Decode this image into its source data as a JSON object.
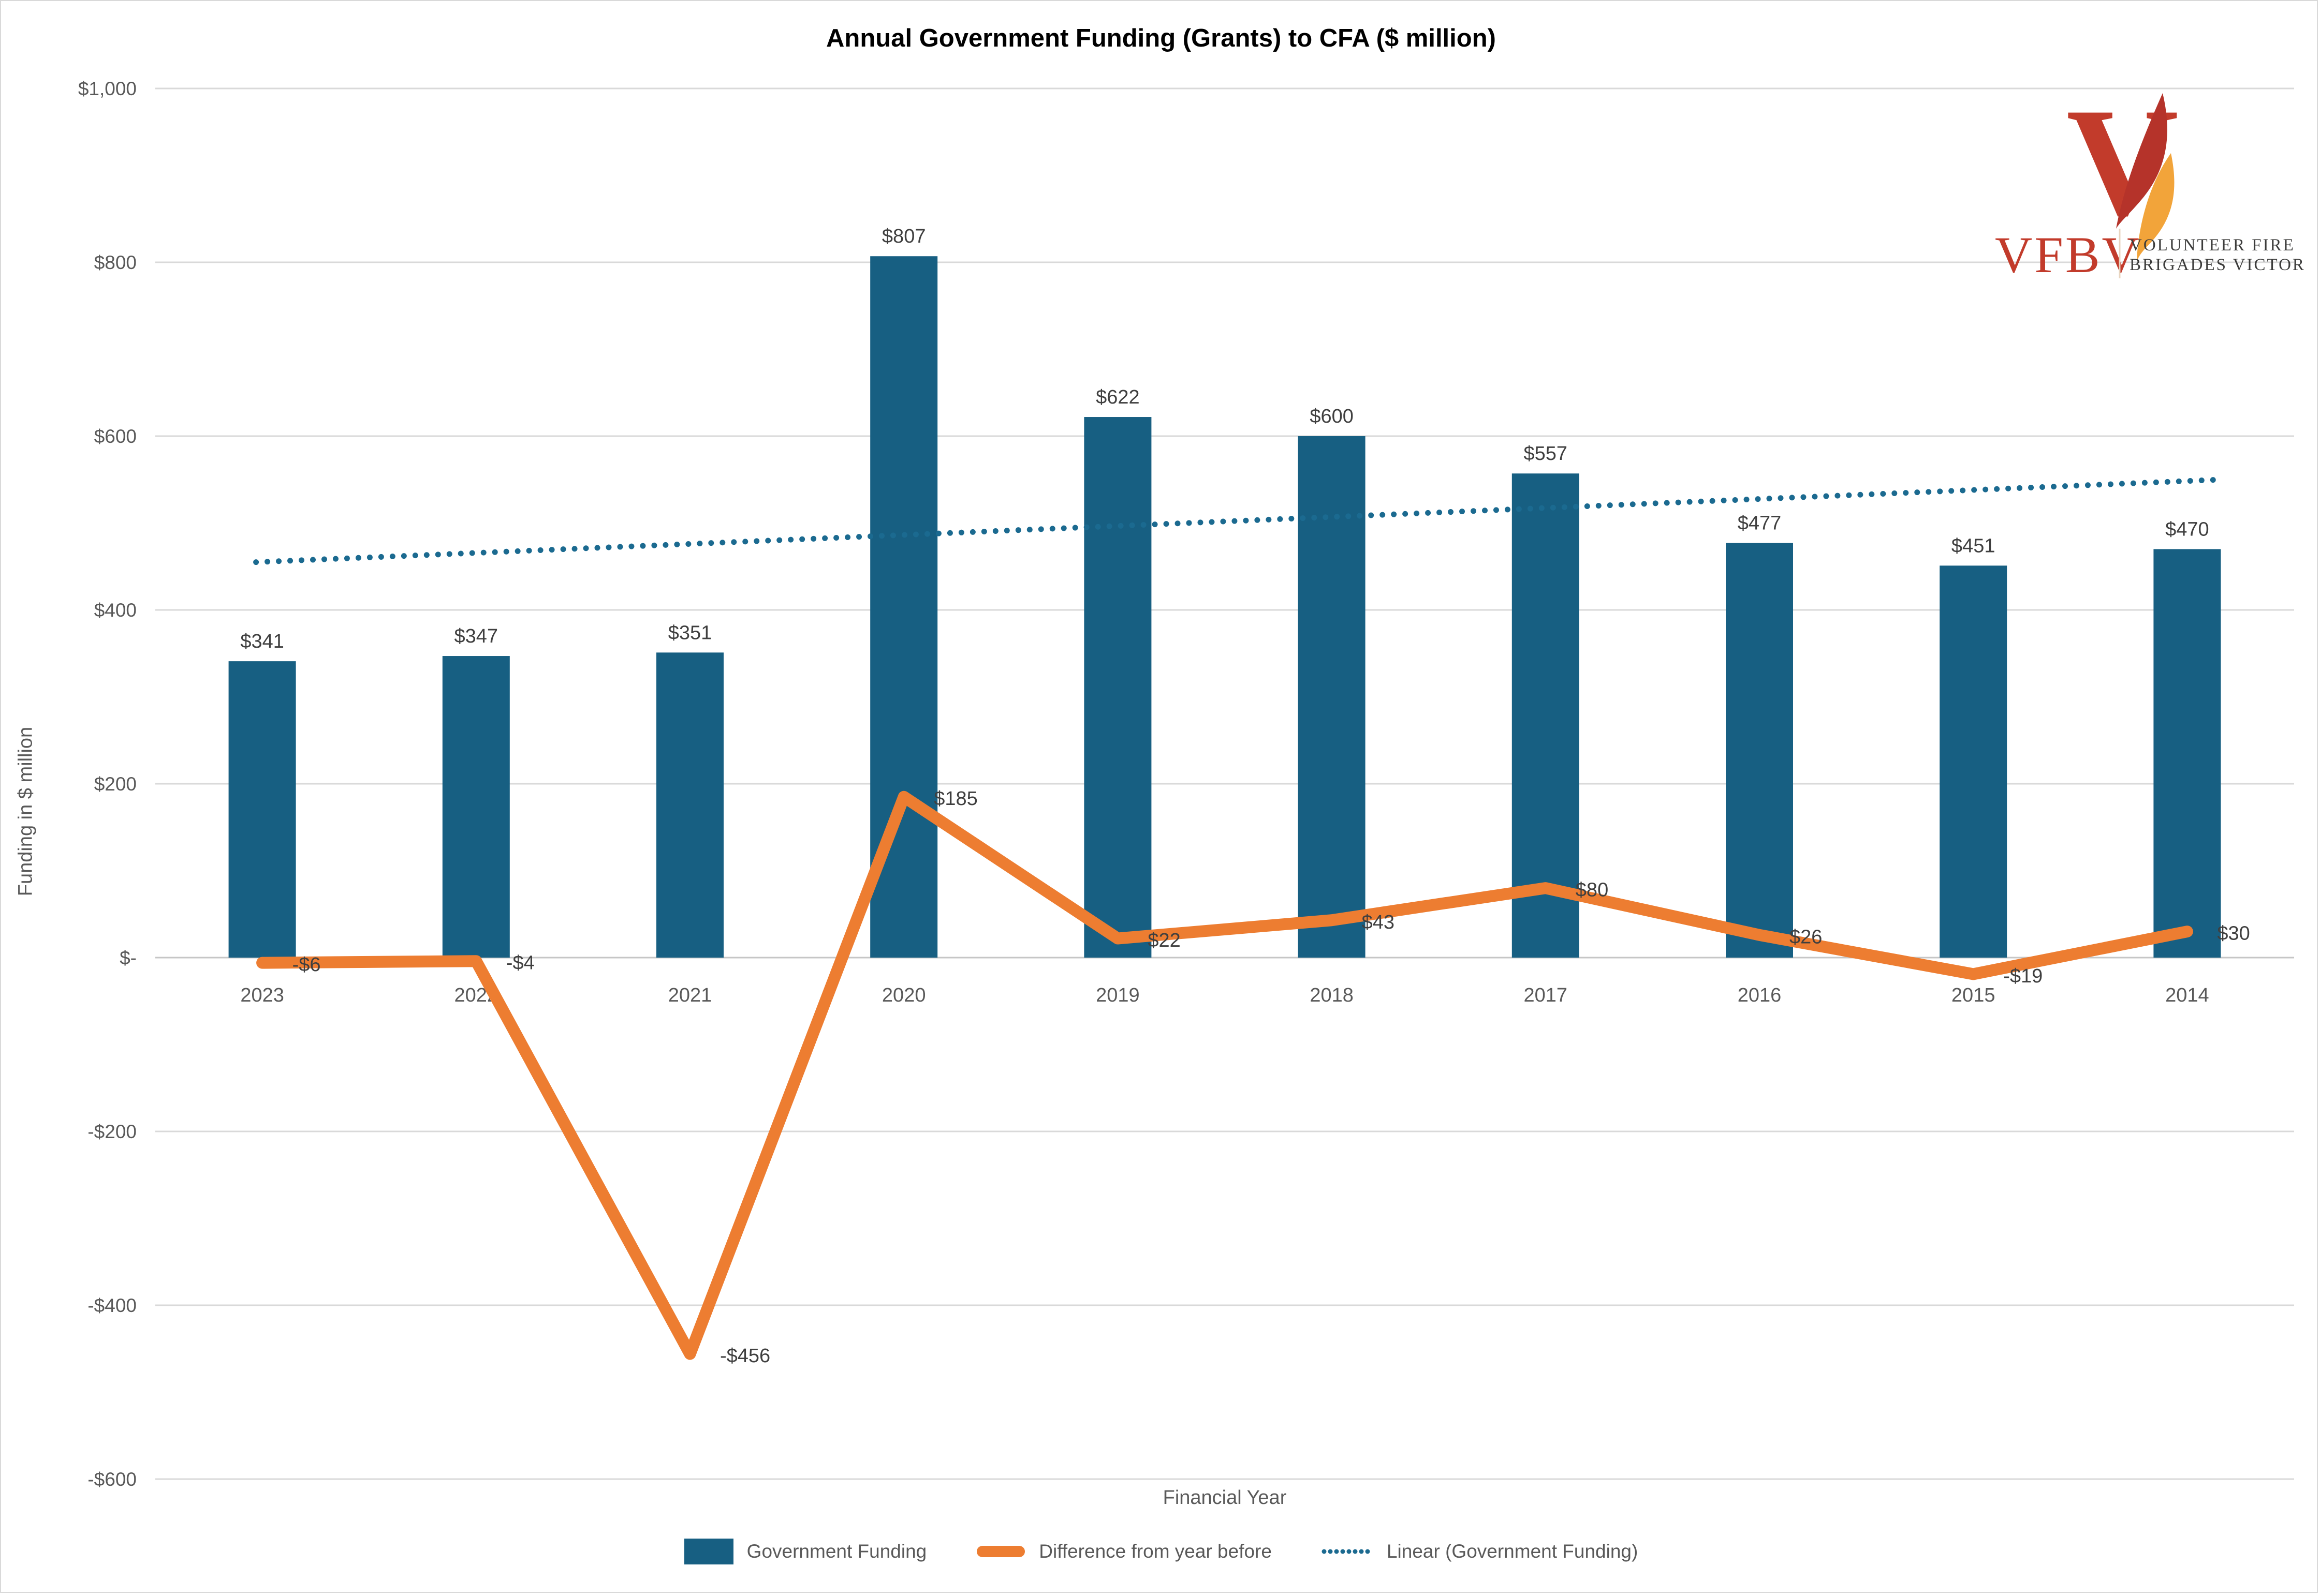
{
  "page": {
    "background": "#FFFFFF",
    "border_color": "#D9D9D9"
  },
  "title": {
    "text": "Annual Government Funding (Grants) to CFA ($ million)",
    "color": "#000000"
  },
  "colors": {
    "bar": "#175F82",
    "diff_line": "#ED7D31",
    "trend": "#1B6A90",
    "gridline": "#D9D9D9",
    "axis_line": "#C6C6C6",
    "tick_text": "#595959",
    "data_label": "#3F3F3F"
  },
  "legend": {
    "items": [
      {
        "label": "Government Funding",
        "swatch": "bar"
      },
      {
        "label": "Difference from year before",
        "swatch": "line"
      },
      {
        "label": "Linear (Government Funding)",
        "swatch": "dotted"
      }
    ]
  },
  "logo": {
    "acronym": "VFBV",
    "name_line1": "VOLUNTEER FIRE",
    "name_line2": "BRIGADES VICTORIA",
    "red": "#C23B2B",
    "flame_dark": "#B5332A",
    "flame_orange": "#F2A43A",
    "text_color": "#3C3C3B",
    "divider_color": "#E8D5C0"
  },
  "chart_data": {
    "type": "bar",
    "title": "Annual Government Funding (Grants) to CFA ($ million)",
    "categories": [
      "2023",
      "2022",
      "2021",
      "2020",
      "2019",
      "2018",
      "2017",
      "2016",
      "2015",
      "2014"
    ],
    "series": [
      {
        "name": "Government Funding",
        "type": "bar",
        "color": "#175F82",
        "values": [
          341,
          347,
          351,
          807,
          622,
          600,
          557,
          477,
          451,
          470
        ],
        "data_labels": [
          "$341",
          "$347",
          "$351",
          "$807",
          "$622",
          "$600",
          "$557",
          "$477",
          "$451",
          "$470"
        ]
      },
      {
        "name": "Difference from year before",
        "type": "line",
        "color": "#ED7D31",
        "values": [
          -6,
          -4,
          -456,
          185,
          22,
          43,
          80,
          26,
          -19,
          30
        ],
        "data_labels": [
          "-$6",
          "-$4",
          "-$456",
          "$185",
          "$22",
          "$43",
          "$80",
          "$26",
          "-$19",
          "$30"
        ]
      },
      {
        "name": "Linear (Government Funding)",
        "type": "linear_trend",
        "color": "#1B6A90",
        "style": "dotted",
        "endpoint_values": [
          455,
          550
        ]
      }
    ],
    "ylim": [
      -600,
      1000
    ],
    "y_tick_step": 200,
    "y_tick_labels": [
      "$1,000",
      "$800",
      "$600",
      "$400",
      "$200",
      "$-",
      "-$200",
      "-$400",
      "-$600"
    ],
    "xlabel": "Financial Year",
    "ylabel": "Funding in $ million",
    "grid": true,
    "legend_position": "bottom"
  }
}
